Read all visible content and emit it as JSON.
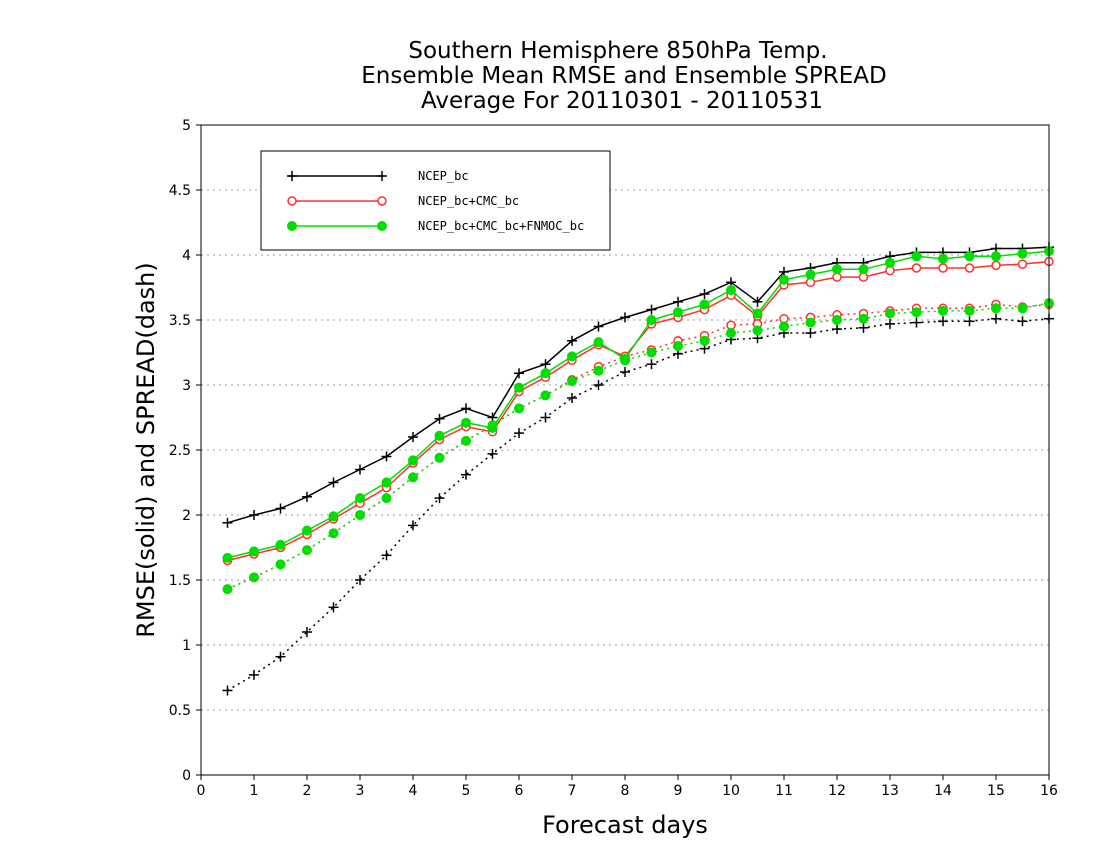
{
  "chart_data": {
    "type": "line",
    "title": [
      "Southern Hemisphere 850hPa Temp.",
      "Ensemble Mean RMSE and Ensemble SPREAD",
      "Average For 20110301 - 20110531"
    ],
    "xlabel": "Forecast days",
    "ylabel": "RMSE(solid) and SPREAD(dash)",
    "xlim": [
      0,
      16
    ],
    "ylim": [
      0,
      5
    ],
    "x_ticks": [
      "0",
      "1",
      "2",
      "3",
      "4",
      "5",
      "6",
      "7",
      "8",
      "9",
      "10",
      "11",
      "12",
      "13",
      "14",
      "15",
      "16"
    ],
    "y_ticks": [
      "0",
      "0.5",
      "1",
      "1.5",
      "2",
      "2.5",
      "3",
      "3.5",
      "4",
      "4.5",
      "5"
    ],
    "grid": "horizontal dotted",
    "legend_position": "top-left",
    "x": [
      0.5,
      1,
      1.5,
      2,
      2.5,
      3,
      3.5,
      4,
      4.5,
      5,
      5.5,
      6,
      6.5,
      7,
      7.5,
      8,
      8.5,
      9,
      9.5,
      10,
      10.5,
      11,
      11.5,
      12,
      12.5,
      13,
      13.5,
      14,
      14.5,
      15,
      15.5,
      16
    ],
    "series": [
      {
        "name": "NCEP_bc",
        "color": "#000000",
        "marker": "plus",
        "rmse": [
          1.94,
          2.0,
          2.05,
          2.14,
          2.25,
          2.35,
          2.45,
          2.6,
          2.74,
          2.82,
          2.75,
          3.09,
          3.16,
          3.34,
          3.45,
          3.52,
          3.58,
          3.64,
          3.7,
          3.79,
          3.64,
          3.87,
          3.9,
          3.94,
          3.94,
          3.99,
          4.02,
          4.02,
          4.02,
          4.05,
          4.05,
          4.06
        ],
        "spread": [
          0.65,
          0.77,
          0.91,
          1.1,
          1.29,
          1.5,
          1.69,
          1.92,
          2.13,
          2.31,
          2.47,
          2.63,
          2.75,
          2.9,
          3.0,
          3.1,
          3.16,
          3.24,
          3.28,
          3.35,
          3.36,
          3.4,
          3.4,
          3.43,
          3.44,
          3.47,
          3.48,
          3.49,
          3.49,
          3.51,
          3.49,
          3.51
        ]
      },
      {
        "name": "NCEP_bc+CMC_bc",
        "color": "#ff3030",
        "marker": "open-circle",
        "rmse": [
          1.65,
          1.7,
          1.75,
          1.85,
          1.97,
          2.09,
          2.21,
          2.4,
          2.58,
          2.68,
          2.64,
          2.95,
          3.06,
          3.19,
          3.31,
          3.22,
          3.47,
          3.52,
          3.58,
          3.69,
          3.53,
          3.77,
          3.79,
          3.83,
          3.83,
          3.88,
          3.9,
          3.9,
          3.9,
          3.92,
          3.93,
          3.95
        ],
        "spread": [
          1.43,
          1.52,
          1.62,
          1.73,
          1.86,
          2.0,
          2.13,
          2.29,
          2.44,
          2.57,
          2.69,
          2.82,
          2.92,
          3.04,
          3.14,
          3.22,
          3.27,
          3.34,
          3.38,
          3.46,
          3.47,
          3.51,
          3.52,
          3.54,
          3.55,
          3.57,
          3.59,
          3.59,
          3.59,
          3.62,
          3.6,
          3.62
        ]
      },
      {
        "name": "NCEP_bc+CMC_bc+FNMOC_bc",
        "color": "#00dd00",
        "marker": "filled-circle",
        "rmse": [
          1.67,
          1.72,
          1.77,
          1.88,
          1.99,
          2.13,
          2.25,
          2.42,
          2.61,
          2.71,
          2.67,
          2.98,
          3.09,
          3.22,
          3.33,
          3.2,
          3.5,
          3.56,
          3.62,
          3.73,
          3.55,
          3.81,
          3.85,
          3.89,
          3.89,
          3.94,
          3.99,
          3.97,
          3.99,
          3.99,
          4.01,
          4.03
        ],
        "spread": [
          1.43,
          1.52,
          1.62,
          1.73,
          1.86,
          2.0,
          2.13,
          2.29,
          2.44,
          2.57,
          2.69,
          2.82,
          2.92,
          3.03,
          3.11,
          3.19,
          3.25,
          3.3,
          3.34,
          3.4,
          3.42,
          3.45,
          3.48,
          3.5,
          3.51,
          3.55,
          3.56,
          3.57,
          3.57,
          3.59,
          3.59,
          3.63
        ]
      }
    ]
  }
}
